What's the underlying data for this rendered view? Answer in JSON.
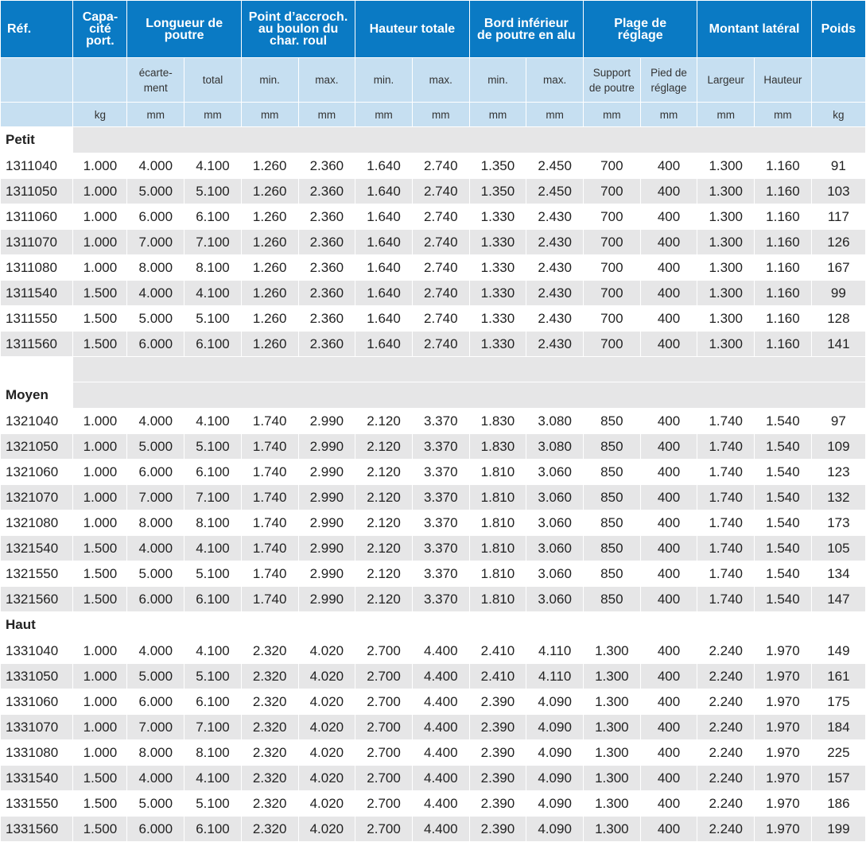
{
  "header": {
    "ref": "Réf.",
    "capacity": "Capa-\ncité\nport.",
    "beam_length": "Longueur de\npoutre",
    "hook_point": "Point d’accroch.\nau boulon du\nchar. roul",
    "total_height": "Hauteur totale",
    "lower_edge": "Bord inférieur\nde poutre en alu",
    "adjust_range": "Plage de\nréglage",
    "side_post": "Montant latéral",
    "weight": "Poids"
  },
  "subheader": [
    "",
    "",
    "écarte-\nment",
    "total",
    "min.",
    "max.",
    "min.",
    "max.",
    "min.",
    "max.",
    "Support\nde poutre",
    "Pied de\nréglage",
    "Largeur",
    "Hauteur",
    ""
  ],
  "units": [
    "",
    "kg",
    "mm",
    "mm",
    "mm",
    "mm",
    "mm",
    "mm",
    "mm",
    "mm",
    "mm",
    "mm",
    "mm",
    "mm",
    "kg"
  ],
  "groups": [
    {
      "label": "Petit",
      "rows": [
        [
          "1311040",
          "1.000",
          "4.000",
          "4.100",
          "1.260",
          "2.360",
          "1.640",
          "2.740",
          "1.350",
          "2.450",
          "700",
          "400",
          "1.300",
          "1.160",
          "91"
        ],
        [
          "1311050",
          "1.000",
          "5.000",
          "5.100",
          "1.260",
          "2.360",
          "1.640",
          "2.740",
          "1.350",
          "2.450",
          "700",
          "400",
          "1.300",
          "1.160",
          "103"
        ],
        [
          "1311060",
          "1.000",
          "6.000",
          "6.100",
          "1.260",
          "2.360",
          "1.640",
          "2.740",
          "1.330",
          "2.430",
          "700",
          "400",
          "1.300",
          "1.160",
          "117"
        ],
        [
          "1311070",
          "1.000",
          "7.000",
          "7.100",
          "1.260",
          "2.360",
          "1.640",
          "2.740",
          "1.330",
          "2.430",
          "700",
          "400",
          "1.300",
          "1.160",
          "126"
        ],
        [
          "1311080",
          "1.000",
          "8.000",
          "8.100",
          "1.260",
          "2.360",
          "1.640",
          "2.740",
          "1.330",
          "2.430",
          "700",
          "400",
          "1.300",
          "1.160",
          "167"
        ],
        [
          "1311540",
          "1.500",
          "4.000",
          "4.100",
          "1.260",
          "2.360",
          "1.640",
          "2.740",
          "1.330",
          "2.430",
          "700",
          "400",
          "1.300",
          "1.160",
          "99"
        ],
        [
          "1311550",
          "1.500",
          "5.000",
          "5.100",
          "1.260",
          "2.360",
          "1.640",
          "2.740",
          "1.330",
          "2.430",
          "700",
          "400",
          "1.300",
          "1.160",
          "128"
        ],
        [
          "1311560",
          "1.500",
          "6.000",
          "6.100",
          "1.260",
          "2.360",
          "1.640",
          "2.740",
          "1.330",
          "2.430",
          "700",
          "400",
          "1.300",
          "1.160",
          "141"
        ]
      ]
    },
    {
      "label": "Moyen",
      "rows": [
        [
          "1321040",
          "1.000",
          "4.000",
          "4.100",
          "1.740",
          "2.990",
          "2.120",
          "3.370",
          "1.830",
          "3.080",
          "850",
          "400",
          "1.740",
          "1.540",
          "97"
        ],
        [
          "1321050",
          "1.000",
          "5.000",
          "5.100",
          "1.740",
          "2.990",
          "2.120",
          "3.370",
          "1.830",
          "3.080",
          "850",
          "400",
          "1.740",
          "1.540",
          "109"
        ],
        [
          "1321060",
          "1.000",
          "6.000",
          "6.100",
          "1.740",
          "2.990",
          "2.120",
          "3.370",
          "1.810",
          "3.060",
          "850",
          "400",
          "1.740",
          "1.540",
          "123"
        ],
        [
          "1321070",
          "1.000",
          "7.000",
          "7.100",
          "1.740",
          "2.990",
          "2.120",
          "3.370",
          "1.810",
          "3.060",
          "850",
          "400",
          "1.740",
          "1.540",
          "132"
        ],
        [
          "1321080",
          "1.000",
          "8.000",
          "8.100",
          "1.740",
          "2.990",
          "2.120",
          "3.370",
          "1.810",
          "3.060",
          "850",
          "400",
          "1.740",
          "1.540",
          "173"
        ],
        [
          "1321540",
          "1.500",
          "4.000",
          "4.100",
          "1.740",
          "2.990",
          "2.120",
          "3.370",
          "1.810",
          "3.060",
          "850",
          "400",
          "1.740",
          "1.540",
          "105"
        ],
        [
          "1321550",
          "1.500",
          "5.000",
          "5.100",
          "1.740",
          "2.990",
          "2.120",
          "3.370",
          "1.810",
          "3.060",
          "850",
          "400",
          "1.740",
          "1.540",
          "134"
        ],
        [
          "1321560",
          "1.500",
          "6.000",
          "6.100",
          "1.740",
          "2.990",
          "2.120",
          "3.370",
          "1.810",
          "3.060",
          "850",
          "400",
          "1.740",
          "1.540",
          "147"
        ]
      ]
    },
    {
      "label": "Haut",
      "rows": [
        [
          "1331040",
          "1.000",
          "4.000",
          "4.100",
          "2.320",
          "4.020",
          "2.700",
          "4.400",
          "2.410",
          "4.110",
          "1.300",
          "400",
          "2.240",
          "1.970",
          "149"
        ],
        [
          "1331050",
          "1.000",
          "5.000",
          "5.100",
          "2.320",
          "4.020",
          "2.700",
          "4.400",
          "2.410",
          "4.110",
          "1.300",
          "400",
          "2.240",
          "1.970",
          "161"
        ],
        [
          "1331060",
          "1.000",
          "6.000",
          "6.100",
          "2.320",
          "4.020",
          "2.700",
          "4.400",
          "2.390",
          "4.090",
          "1.300",
          "400",
          "2.240",
          "1.970",
          "175"
        ],
        [
          "1331070",
          "1.000",
          "7.000",
          "7.100",
          "2.320",
          "4.020",
          "2.700",
          "4.400",
          "2.390",
          "4.090",
          "1.300",
          "400",
          "2.240",
          "1.970",
          "184"
        ],
        [
          "1331080",
          "1.000",
          "8.000",
          "8.100",
          "2.320",
          "4.020",
          "2.700",
          "4.400",
          "2.390",
          "4.090",
          "1.300",
          "400",
          "2.240",
          "1.970",
          "225"
        ],
        [
          "1331540",
          "1.500",
          "4.000",
          "4.100",
          "2.320",
          "4.020",
          "2.700",
          "4.400",
          "2.390",
          "4.090",
          "1.300",
          "400",
          "2.240",
          "1.970",
          "157"
        ],
        [
          "1331550",
          "1.500",
          "5.000",
          "5.100",
          "2.320",
          "4.020",
          "2.700",
          "4.400",
          "2.390",
          "4.090",
          "1.300",
          "400",
          "2.240",
          "1.970",
          "186"
        ],
        [
          "1331560",
          "1.500",
          "6.000",
          "6.100",
          "2.320",
          "4.020",
          "2.700",
          "4.400",
          "2.390",
          "4.090",
          "1.300",
          "400",
          "2.240",
          "1.970",
          "199"
        ]
      ]
    }
  ],
  "colors": {
    "header_blue": "#0a7ac4",
    "subheader_blue": "#c6dff1",
    "row_gray": "#e6e6e7"
  }
}
